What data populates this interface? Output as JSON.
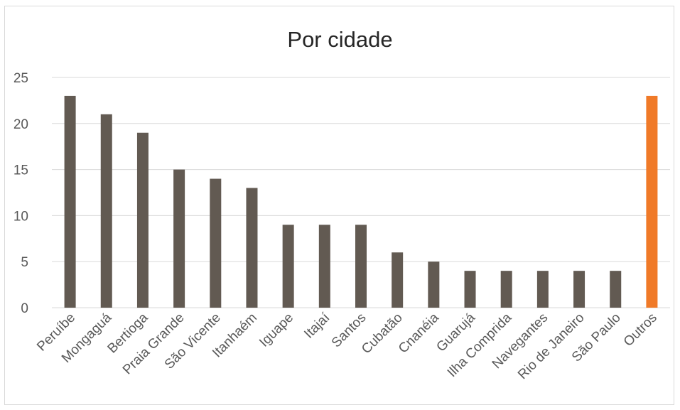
{
  "chart_data": {
    "type": "bar",
    "title": "Por cidade",
    "xlabel": "",
    "ylabel": "",
    "ylim": [
      0,
      25
    ],
    "yticks": [
      0,
      5,
      10,
      15,
      20,
      25
    ],
    "grid": true,
    "legend": "none",
    "categories": [
      "Peruíbe",
      "Mongaguá",
      "Bertioga",
      "Praia Grande",
      "São Vicente",
      "Itanhaém",
      "Iguape",
      "Itajaí",
      "Santos",
      "Cubatão",
      "Cnanéia",
      "Guarujá",
      "Ilha Comprida",
      "Navegantes",
      "Rio de Janeiro",
      "São Paulo",
      "Outros"
    ],
    "values": [
      23,
      21,
      19,
      15,
      14,
      13,
      9,
      9,
      9,
      6,
      5,
      4,
      4,
      4,
      4,
      4,
      23
    ],
    "colors": {
      "default_bar": "#625a52",
      "highlight_bar": "#f07a28",
      "gridline": "#d9d9d9",
      "axis_text": "#595959"
    },
    "highlight_category": "Outros"
  }
}
